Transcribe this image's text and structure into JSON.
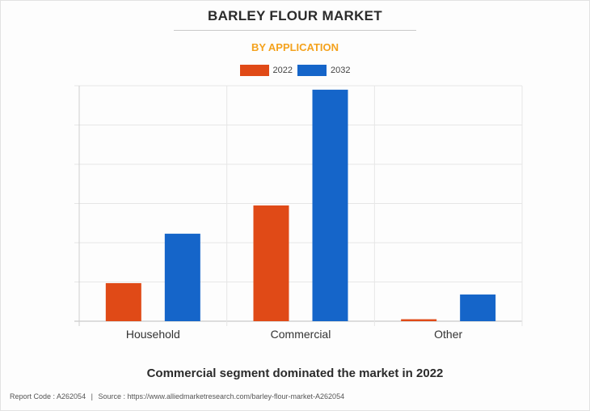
{
  "title": "BARLEY FLOUR MARKET",
  "subtitle": "BY APPLICATION",
  "caption": "Commercial segment dominated the market in 2022",
  "footer": {
    "report_code": "Report Code : A262054",
    "separator": "|",
    "source": "Source : https://www.alliedmarketresearch.com/barley-flour-market-A262054"
  },
  "colors": {
    "series_2022": "#e04a17",
    "series_2032": "#1565c9",
    "subtitle": "#f4a21d"
  },
  "chart_data": {
    "type": "bar",
    "categories": [
      "Household",
      "Commercial",
      "Other"
    ],
    "series": [
      {
        "name": "2022",
        "values": [
          0.97,
          2.95,
          0.05
        ]
      },
      {
        "name": "2032",
        "values": [
          2.23,
          5.9,
          0.68
        ]
      }
    ],
    "ylim": [
      0,
      6
    ],
    "grid": true,
    "legend": "top-center",
    "y_tick_labels_shown": false
  }
}
